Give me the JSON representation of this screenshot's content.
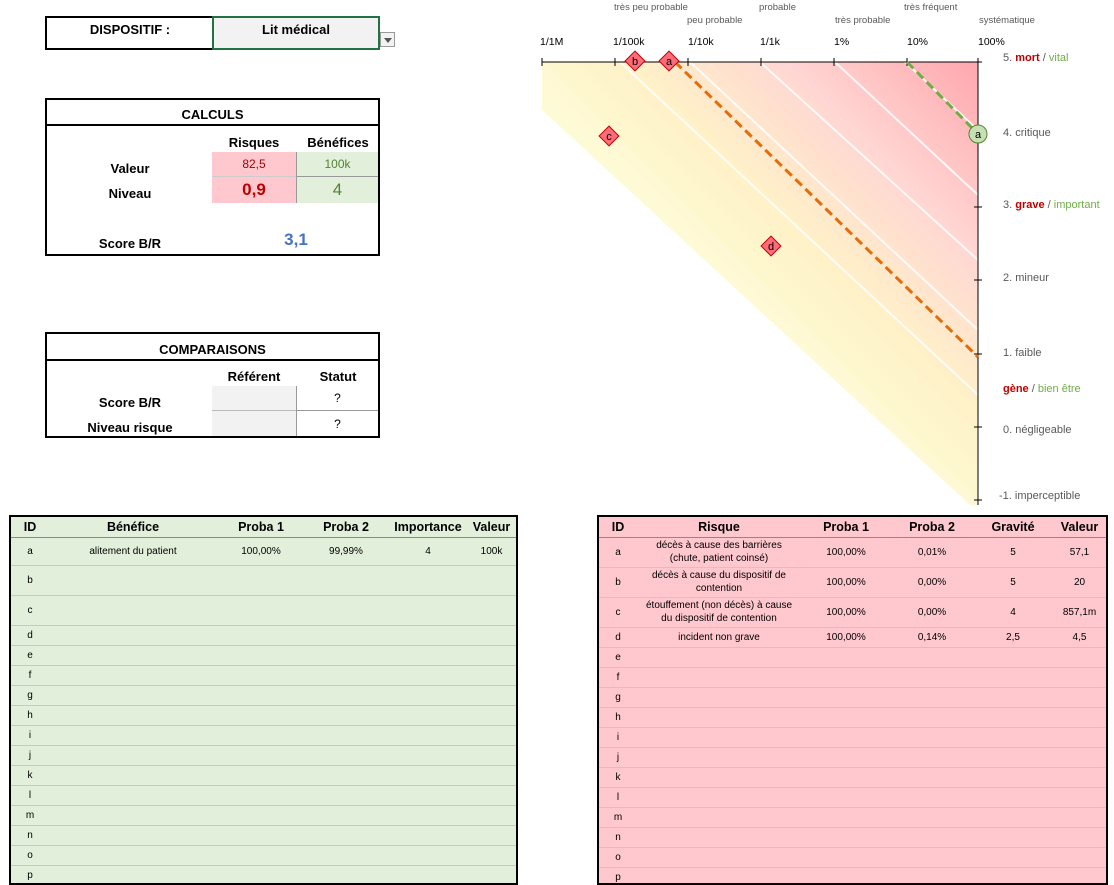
{
  "device": {
    "label": "DISPOSITIF :",
    "value": "Lit médical"
  },
  "calculs": {
    "title": "CALCULS",
    "col_risques": "Risques",
    "col_benefices": "Bénéfices",
    "row_valeur": "Valeur",
    "row_niveau": "Niveau",
    "valeur_risques": "82,5",
    "valeur_benefices": "100k",
    "niveau_risques": "0,9",
    "niveau_benefices": "4",
    "score_label": "Score B/R",
    "score_value": "3,1"
  },
  "comparaisons": {
    "title": "COMPARAISONS",
    "col_referent": "Référent",
    "col_statut": "Statut",
    "row_score": "Score B/R",
    "row_niveau": "Niveau risque",
    "score_statut": "?",
    "niveau_statut": "?"
  },
  "chart_data": {
    "type": "scatter",
    "x_ticks": [
      "1/1M",
      "1/100k",
      "1/10k",
      "1/1k",
      "1%",
      "10%",
      "100%"
    ],
    "x_categories": [
      "très peu probable",
      "peu probable",
      "probable",
      "très probable",
      "très fréquent",
      "systématique"
    ],
    "y_ticks": [
      {
        "num": "5.",
        "risk": "mort",
        "sep": " / ",
        "benefit": "vital"
      },
      {
        "num": "4.",
        "text": "critique"
      },
      {
        "num": "3.",
        "risk": "grave",
        "sep": " / ",
        "benefit": "important"
      },
      {
        "num": "2.",
        "text": "mineur"
      },
      {
        "num": "1.",
        "text": "faible"
      },
      {
        "risk": "gène",
        "sep": " / ",
        "benefit": "bien être"
      },
      {
        "num": "0.",
        "text": "négligeable"
      },
      {
        "num": "-1.",
        "text": "imperceptible"
      }
    ],
    "risk_points": [
      {
        "id": "b",
        "proba": "0,00%",
        "gravite": 5
      },
      {
        "id": "a",
        "proba": "0,01%",
        "gravite": 5
      },
      {
        "id": "c",
        "proba": "0,00%",
        "gravite": 4
      },
      {
        "id": "d",
        "proba": "0,14%",
        "gravite": 2.5
      }
    ],
    "benefit_points": [
      {
        "id": "a",
        "proba": "99,99%",
        "importance": 4
      }
    ],
    "colors": {
      "risk": "#ff5a6e",
      "benefit": "#70ad47",
      "risk_line": "#e46c0a"
    }
  },
  "benefices": {
    "headers": [
      "ID",
      "Bénéfice",
      "Proba 1",
      "Proba 2",
      "Importance",
      "Valeur"
    ],
    "rows": [
      [
        "a",
        "alitement du patient",
        "100,00%",
        "99,99%",
        "4",
        "100k"
      ],
      [
        "b",
        "",
        "",
        "",
        "",
        ""
      ],
      [
        "c",
        "",
        "",
        "",
        "",
        ""
      ],
      [
        "d",
        "",
        "",
        "",
        "",
        ""
      ],
      [
        "e",
        "",
        "",
        "",
        "",
        ""
      ],
      [
        "f",
        "",
        "",
        "",
        "",
        ""
      ],
      [
        "g",
        "",
        "",
        "",
        "",
        ""
      ],
      [
        "h",
        "",
        "",
        "",
        "",
        ""
      ],
      [
        "i",
        "",
        "",
        "",
        "",
        ""
      ],
      [
        "j",
        "",
        "",
        "",
        "",
        ""
      ],
      [
        "k",
        "",
        "",
        "",
        "",
        ""
      ],
      [
        "l",
        "",
        "",
        "",
        "",
        ""
      ],
      [
        "m",
        "",
        "",
        "",
        "",
        ""
      ],
      [
        "n",
        "",
        "",
        "",
        "",
        ""
      ],
      [
        "o",
        "",
        "",
        "",
        "",
        ""
      ],
      [
        "p",
        "",
        "",
        "",
        "",
        ""
      ]
    ],
    "color": "#e2efda"
  },
  "risques": {
    "headers": [
      "ID",
      "Risque",
      "Proba 1",
      "Proba 2",
      "Gravité",
      "Valeur"
    ],
    "rows": [
      [
        "a",
        "décès à cause des barrières (chute, patient coinsé)",
        "100,00%",
        "0,01%",
        "5",
        "57,1"
      ],
      [
        "b",
        "décès  à cause du dispositif de contention",
        "100,00%",
        "0,00%",
        "5",
        "20"
      ],
      [
        "c",
        "étouffement (non décès) à cause du dispositif de contention",
        "100,00%",
        "0,00%",
        "4",
        "857,1m"
      ],
      [
        "d",
        "incident non grave",
        "100,00%",
        "0,14%",
        "2,5",
        "4,5"
      ],
      [
        "e",
        "",
        "",
        "",
        "",
        ""
      ],
      [
        "f",
        "",
        "",
        "",
        "",
        ""
      ],
      [
        "g",
        "",
        "",
        "",
        "",
        ""
      ],
      [
        "h",
        "",
        "",
        "",
        "",
        ""
      ],
      [
        "i",
        "",
        "",
        "",
        "",
        ""
      ],
      [
        "j",
        "",
        "",
        "",
        "",
        ""
      ],
      [
        "k",
        "",
        "",
        "",
        "",
        ""
      ],
      [
        "l",
        "",
        "",
        "",
        "",
        ""
      ],
      [
        "m",
        "",
        "",
        "",
        "",
        ""
      ],
      [
        "n",
        "",
        "",
        "",
        "",
        ""
      ],
      [
        "o",
        "",
        "",
        "",
        "",
        ""
      ],
      [
        "p",
        "",
        "",
        "",
        "",
        ""
      ]
    ],
    "color": "#ffc7ce"
  }
}
